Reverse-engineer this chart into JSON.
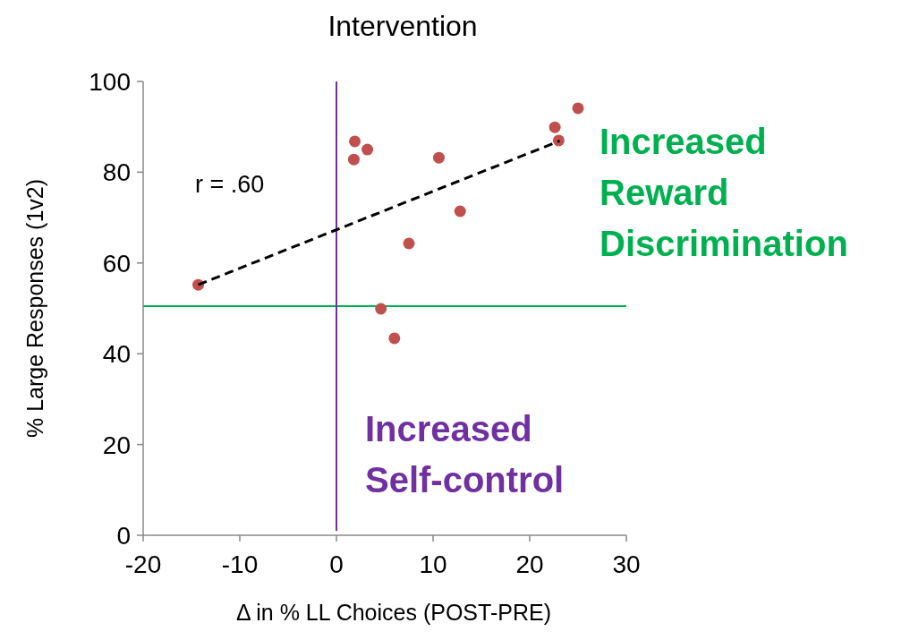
{
  "chart_data": {
    "type": "scatter",
    "title": "Intervention",
    "xlabel": "Δ in % LL Choices (POST-PRE)",
    "ylabel": "% Large Responses (1v2)",
    "xlim": [
      -20,
      30
    ],
    "xticks": [
      -20,
      -10,
      0,
      10,
      20,
      30
    ],
    "ylim": [
      0,
      100
    ],
    "yticks": [
      0,
      20,
      40,
      60,
      80,
      100
    ],
    "grid": false,
    "marker": "circle",
    "series": [
      {
        "color": "#c0504d",
        "x": [
          -14.3,
          1.9,
          1.8,
          3.2,
          10.6,
          12.8,
          7.5,
          4.6,
          6.0,
          22.6,
          23.0,
          25.0
        ],
        "values": [
          55.2,
          86.8,
          82.8,
          85.0,
          83.2,
          71.4,
          64.3,
          49.9,
          43.4,
          89.9,
          87.0,
          94.1
        ]
      },
      {
        "type": "line",
        "color": "#000000",
        "line_style": "dashed",
        "marker": "none",
        "x": [
          -14.3,
          23.1
        ],
        "values": [
          55.2,
          86.9
        ]
      }
    ],
    "ref_lines": [
      {
        "axis": "y",
        "value": 50.5,
        "label": "Increased Reward Discrimination",
        "color": "#00b050"
      },
      {
        "axis": "x",
        "value": 0,
        "label": "Increased Self-control",
        "color": "#7030a0"
      }
    ],
    "annotations": [
      "r = .60"
    ]
  }
}
